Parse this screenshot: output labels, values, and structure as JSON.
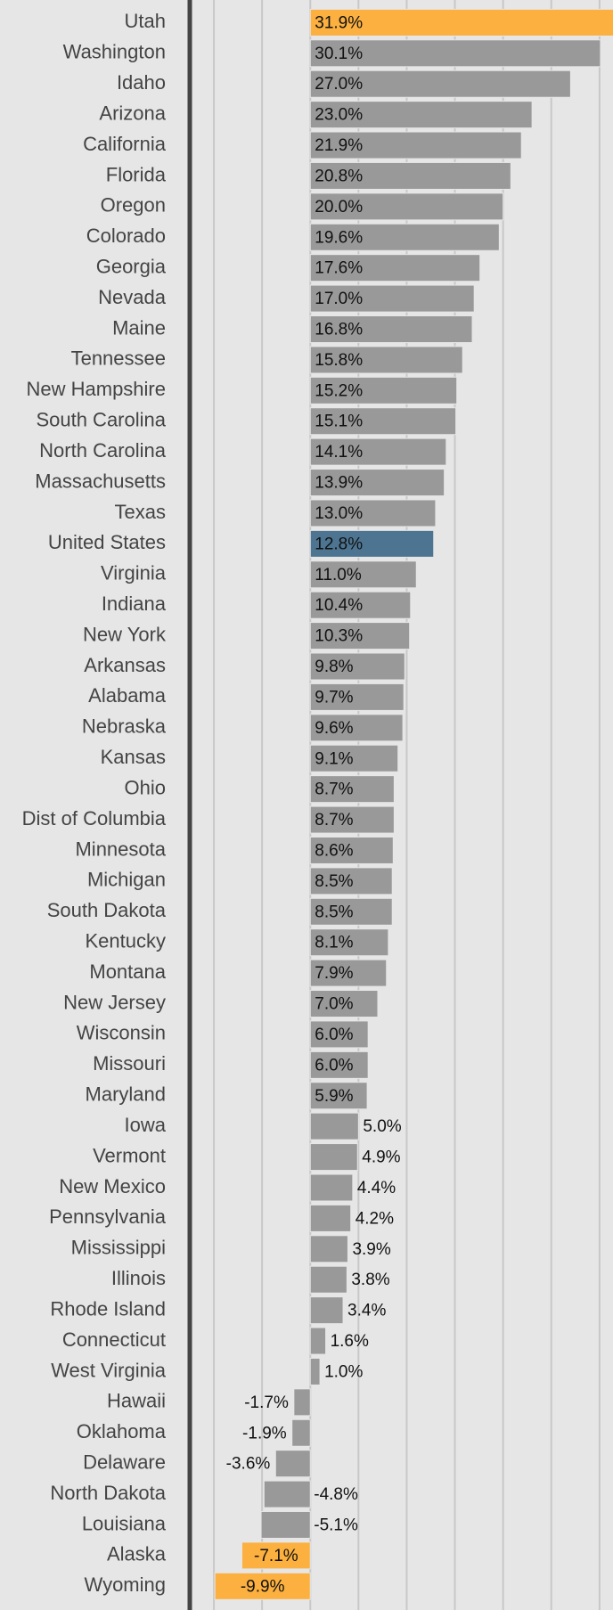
{
  "chart_data": {
    "type": "barh",
    "categories": [
      "Utah",
      "Washington",
      "Idaho",
      "Arizona",
      "California",
      "Florida",
      "Oregon",
      "Colorado",
      "Georgia",
      "Nevada",
      "Maine",
      "Tennessee",
      "New Hampshire",
      "South Carolina",
      "North Carolina",
      "Massachusetts",
      "Texas",
      "United States",
      "Virginia",
      "Indiana",
      "New York",
      "Arkansas",
      "Alabama",
      "Nebraska",
      "Kansas",
      "Ohio",
      "Dist of Columbia",
      "Minnesota",
      "Michigan",
      "South Dakota",
      "Kentucky",
      "Montana",
      "New Jersey",
      "Wisconsin",
      "Missouri",
      "Maryland",
      "Iowa",
      "Vermont",
      "New Mexico",
      "Pennsylvania",
      "Mississippi",
      "Illinois",
      "Rhode Island",
      "Connecticut",
      "West Virginia",
      "Hawaii",
      "Oklahoma",
      "Delaware",
      "North Dakota",
      "Louisiana",
      "Alaska",
      "Wyoming"
    ],
    "values": [
      31.9,
      30.1,
      27.0,
      23.0,
      21.9,
      20.8,
      20.0,
      19.6,
      17.6,
      17.0,
      16.8,
      15.8,
      15.2,
      15.1,
      14.1,
      13.9,
      13.0,
      12.8,
      11.0,
      10.4,
      10.3,
      9.8,
      9.7,
      9.6,
      9.1,
      8.7,
      8.7,
      8.6,
      8.5,
      8.5,
      8.1,
      7.9,
      7.0,
      6.0,
      6.0,
      5.9,
      5.0,
      4.9,
      4.4,
      4.2,
      3.9,
      3.8,
      3.4,
      1.6,
      1.0,
      -1.7,
      -1.9,
      -3.6,
      -4.8,
      -5.1,
      -7.1,
      -9.9
    ],
    "value_labels": [
      "31.9%",
      "30.1%",
      "27.0%",
      "23.0%",
      "21.9%",
      "20.8%",
      "20.0%",
      "19.6%",
      "17.6%",
      "17.0%",
      "16.8%",
      "15.8%",
      "15.2%",
      "15.1%",
      "14.1%",
      "13.9%",
      "13.0%",
      "12.8%",
      "11.0%",
      "10.4%",
      "10.3%",
      "9.8%",
      "9.7%",
      "9.6%",
      "9.1%",
      "8.7%",
      "8.7%",
      "8.6%",
      "8.5%",
      "8.5%",
      "8.1%",
      "7.9%",
      "7.0%",
      "6.0%",
      "6.0%",
      "5.9%",
      "5.0%",
      "4.9%",
      "4.4%",
      "4.2%",
      "3.9%",
      "3.8%",
      "3.4%",
      "1.6%",
      "1.0%",
      "-1.7%",
      "-1.9%",
      "-3.6%",
      "-4.8%",
      "-5.1%",
      "-7.1%",
      "-9.9%"
    ],
    "colors": [
      "#fbb040",
      "#999999",
      "#999999",
      "#999999",
      "#999999",
      "#999999",
      "#999999",
      "#999999",
      "#999999",
      "#999999",
      "#999999",
      "#999999",
      "#999999",
      "#999999",
      "#999999",
      "#999999",
      "#999999",
      "#4d7591",
      "#999999",
      "#999999",
      "#999999",
      "#999999",
      "#999999",
      "#999999",
      "#999999",
      "#999999",
      "#999999",
      "#999999",
      "#999999",
      "#999999",
      "#999999",
      "#999999",
      "#999999",
      "#999999",
      "#999999",
      "#999999",
      "#999999",
      "#999999",
      "#999999",
      "#999999",
      "#999999",
      "#999999",
      "#999999",
      "#999999",
      "#999999",
      "#999999",
      "#999999",
      "#999999",
      "#999999",
      "#999999",
      "#fbb040",
      "#fbb040"
    ],
    "xlim": [
      -12.5,
      31.4
    ],
    "xticks": [
      -10,
      -5,
      0,
      5,
      10,
      15,
      20,
      25,
      30
    ],
    "grid": true
  }
}
